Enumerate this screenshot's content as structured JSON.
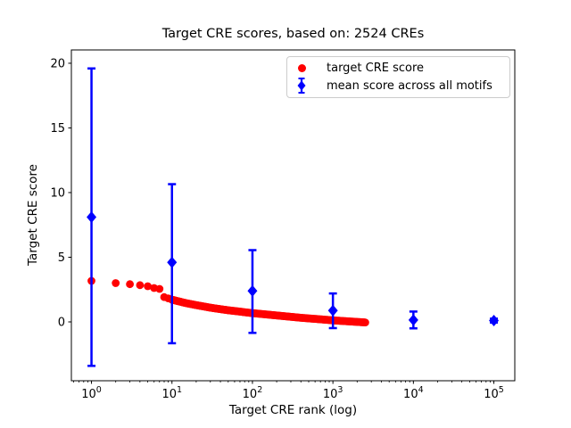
{
  "figure": {
    "background": "#ffffff"
  },
  "chart_data": {
    "type": "scatter",
    "title": "Target CRE scores, based on: 2524 CREs",
    "xlabel": "Target CRE rank (log)",
    "ylabel": "Target CRE score",
    "xscale": "log",
    "xlim_log10": [
      -0.25,
      5.26
    ],
    "ylim": [
      -4.55,
      21.03
    ],
    "yticks": [
      0,
      5,
      10,
      15,
      20
    ],
    "xticks": [
      1,
      10,
      100,
      1000,
      10000,
      100000
    ],
    "xtick_base": "10",
    "xtick_exponents": [
      "0",
      "1",
      "2",
      "3",
      "4",
      "5"
    ],
    "grid": false,
    "legend_position": "upper right",
    "series": [
      {
        "name": "target CRE score",
        "kind": "scatter",
        "marker": "circle",
        "color": "#ff0000",
        "n_points_total": 2524,
        "anchors_rank_score": [
          [
            1,
            3.17
          ],
          [
            2,
            3.0
          ],
          [
            3,
            2.92
          ],
          [
            4,
            2.84
          ],
          [
            5,
            2.76
          ],
          [
            6,
            2.62
          ],
          [
            7,
            2.55
          ],
          [
            8,
            1.92
          ],
          [
            9,
            1.82
          ],
          [
            10,
            1.72
          ],
          [
            15,
            1.45
          ],
          [
            20,
            1.3
          ],
          [
            30,
            1.1
          ],
          [
            50,
            0.9
          ],
          [
            100,
            0.68
          ],
          [
            200,
            0.5
          ],
          [
            400,
            0.32
          ],
          [
            700,
            0.2
          ],
          [
            1000,
            0.12
          ],
          [
            1500,
            0.05
          ],
          [
            2000,
            0.0
          ],
          [
            2524,
            -0.04
          ]
        ]
      },
      {
        "name": "mean score across all motifs",
        "kind": "errorbar",
        "marker": "diamond",
        "color": "#0000ff",
        "x": [
          1,
          10,
          100,
          1000,
          10000,
          100000
        ],
        "mean": [
          8.1,
          4.6,
          2.4,
          0.88,
          0.15,
          0.1
        ],
        "err_low": [
          -3.4,
          -1.65,
          -0.85,
          -0.48,
          -0.5,
          -0.05
        ],
        "err_high": [
          19.6,
          10.65,
          5.55,
          2.2,
          0.8,
          0.25
        ]
      }
    ]
  }
}
